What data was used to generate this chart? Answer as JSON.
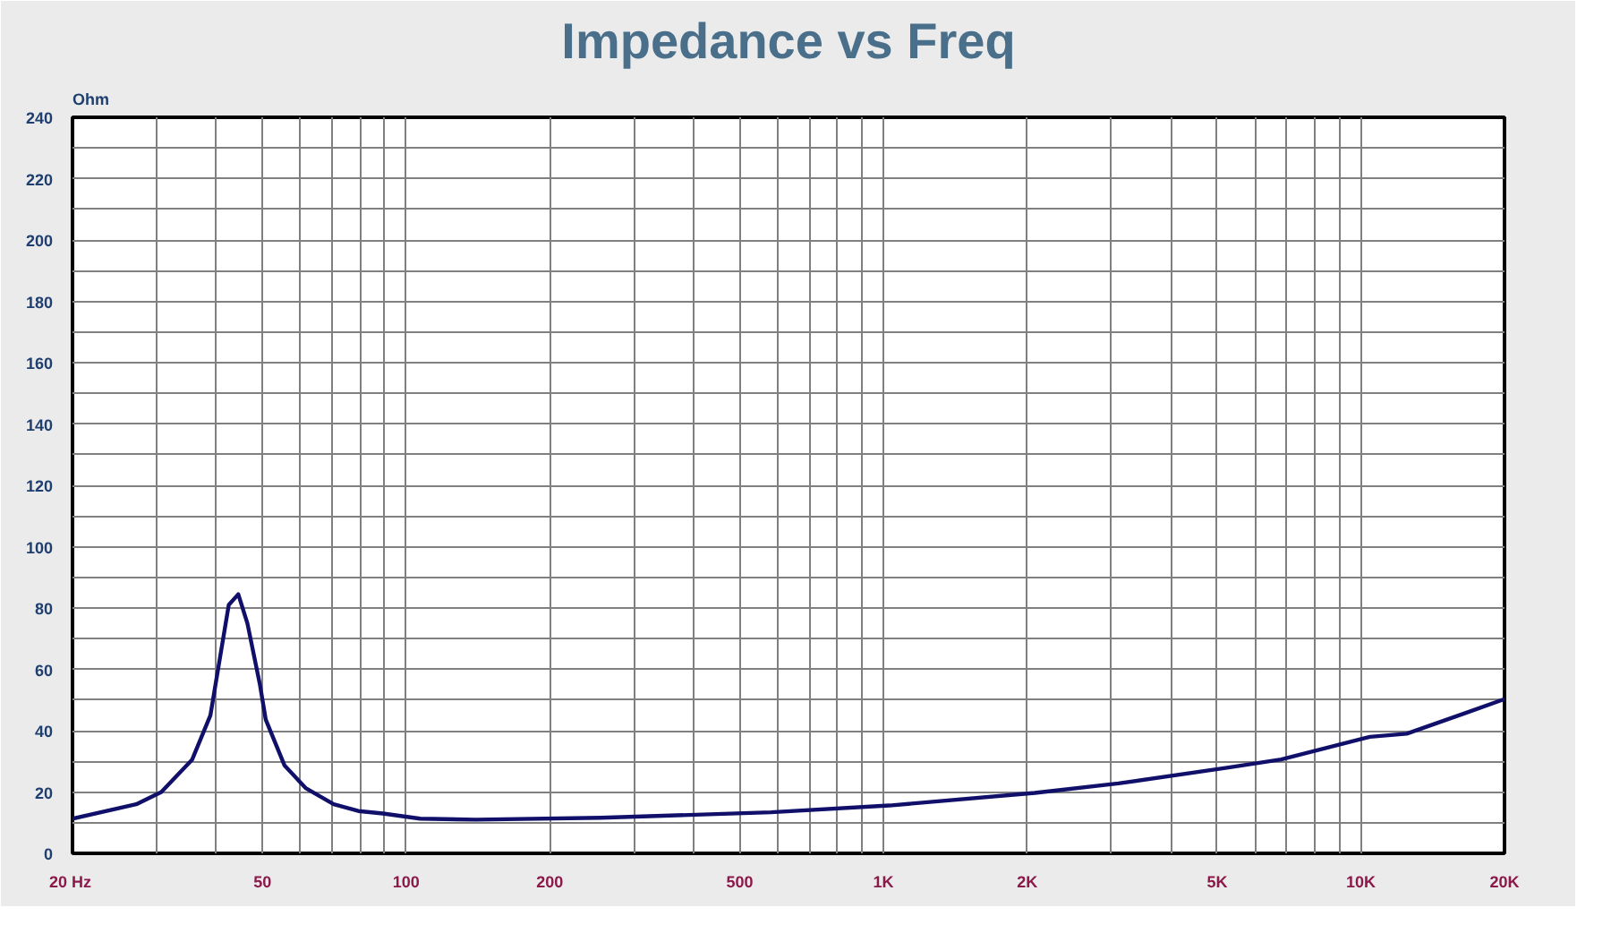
{
  "chart_data": {
    "type": "line",
    "title": "Impedance vs Freq",
    "ylabel": "Ohm",
    "log": "x",
    "grid": true,
    "marker": "none",
    "line_style": "solid",
    "xlim": [
      20,
      20000
    ],
    "ylim": [
      0,
      240
    ],
    "xticks": [
      {
        "value": 20,
        "label": "20  Hz"
      },
      {
        "value": 30,
        "label": null
      },
      {
        "value": 40,
        "label": null
      },
      50,
      {
        "value": 60,
        "label": null
      },
      {
        "value": 70,
        "label": null
      },
      {
        "value": 80,
        "label": null
      },
      {
        "value": 90,
        "label": null
      },
      100,
      200,
      {
        "value": 300,
        "label": null
      },
      {
        "value": 400,
        "label": null
      },
      500,
      {
        "value": 600,
        "label": null
      },
      {
        "value": 700,
        "label": null
      },
      {
        "value": 800,
        "label": null
      },
      {
        "value": 900,
        "label": null
      },
      {
        "value": 1000,
        "label": "1K"
      },
      {
        "value": 2000,
        "label": "2K"
      },
      {
        "value": 3000,
        "label": null
      },
      {
        "value": 4000,
        "label": null
      },
      {
        "value": 5000,
        "label": "5K"
      },
      {
        "value": 6000,
        "label": null
      },
      {
        "value": 7000,
        "label": null
      },
      {
        "value": 8000,
        "label": null
      },
      {
        "value": 9000,
        "label": null
      },
      {
        "value": 10000,
        "label": "10K"
      },
      {
        "value": 20000,
        "label": "20K"
      }
    ],
    "yticks": [
      0,
      {
        "value": 10,
        "label": null
      },
      20,
      {
        "value": 30,
        "label": null
      },
      40,
      {
        "value": 50,
        "label": null
      },
      60,
      {
        "value": 70,
        "label": null
      },
      80,
      {
        "value": 90,
        "label": null
      },
      100,
      {
        "value": 110,
        "label": null
      },
      120,
      {
        "value": 130,
        "label": null
      },
      140,
      {
        "value": 150,
        "label": null
      },
      160,
      {
        "value": 170,
        "label": null
      },
      180,
      {
        "value": 190,
        "label": null
      },
      200,
      {
        "value": 210,
        "label": null
      },
      220,
      {
        "value": 230,
        "label": null
      },
      240
    ],
    "x": [
      20,
      27.2,
      30.7,
      35.6,
      38.9,
      42.5,
      44.5,
      46.5,
      49.4,
      50.8,
      55.6,
      61.7,
      70.5,
      79.4,
      89.4,
      107,
      140,
      256,
      581,
      1029,
      2075,
      3106,
      5245,
      6811,
      10450,
      12480,
      16600,
      20000
    ],
    "series": [
      {
        "color": "#10106b",
        "values": [
          11.3,
          16,
          20,
          30.5,
          45,
          81,
          84.5,
          75,
          55,
          43.6,
          28.7,
          21.2,
          16,
          13.8,
          13,
          11.3,
          11,
          11.6,
          13.4,
          15.6,
          19.7,
          22.8,
          27.9,
          30.6,
          38,
          39,
          45.8,
          50.3
        ]
      }
    ]
  }
}
